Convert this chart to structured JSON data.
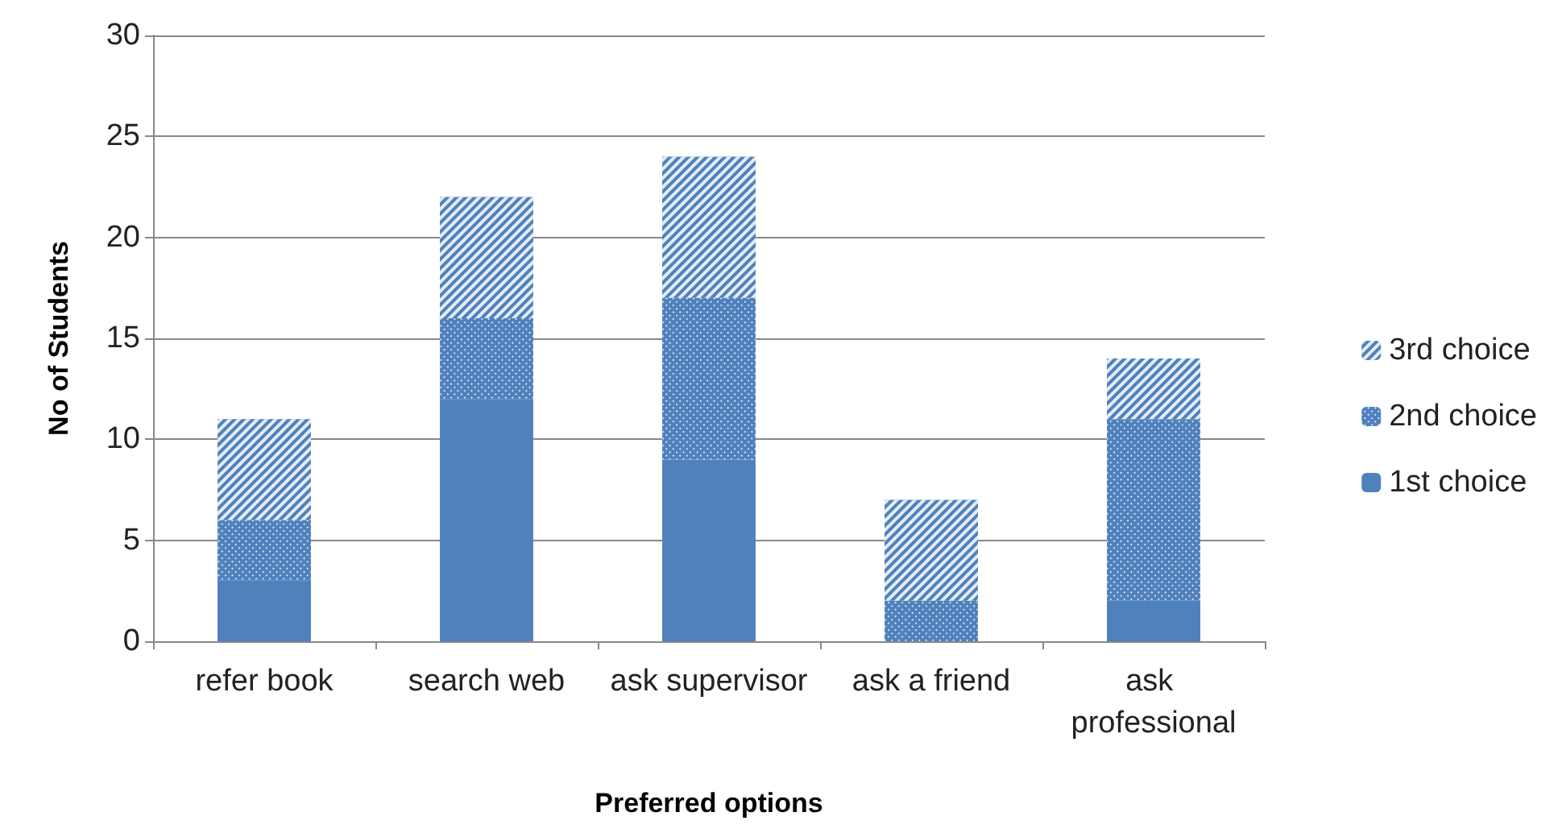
{
  "chart_data": {
    "type": "bar",
    "stacked": true,
    "xlabel": "Preferred options",
    "ylabel": "No of Students",
    "categories": [
      "refer book",
      "search web",
      "ask supervisor",
      "ask a friend",
      "ask professional"
    ],
    "series": [
      {
        "name": "1st choice",
        "color": "#4f81bd",
        "values": [
          3,
          12,
          9,
          0,
          2
        ]
      },
      {
        "name": "2nd choice",
        "color": "#4f81bd",
        "values": [
          3,
          4,
          8,
          2,
          9
        ]
      },
      {
        "name": "3rd choice",
        "color": "#4f81bd",
        "values": [
          5,
          6,
          7,
          5,
          3
        ]
      }
    ],
    "ylim": [
      0,
      30
    ],
    "yticks": [
      0,
      5,
      10,
      15,
      20,
      25,
      30
    ],
    "grid": "y",
    "legend": "right"
  }
}
